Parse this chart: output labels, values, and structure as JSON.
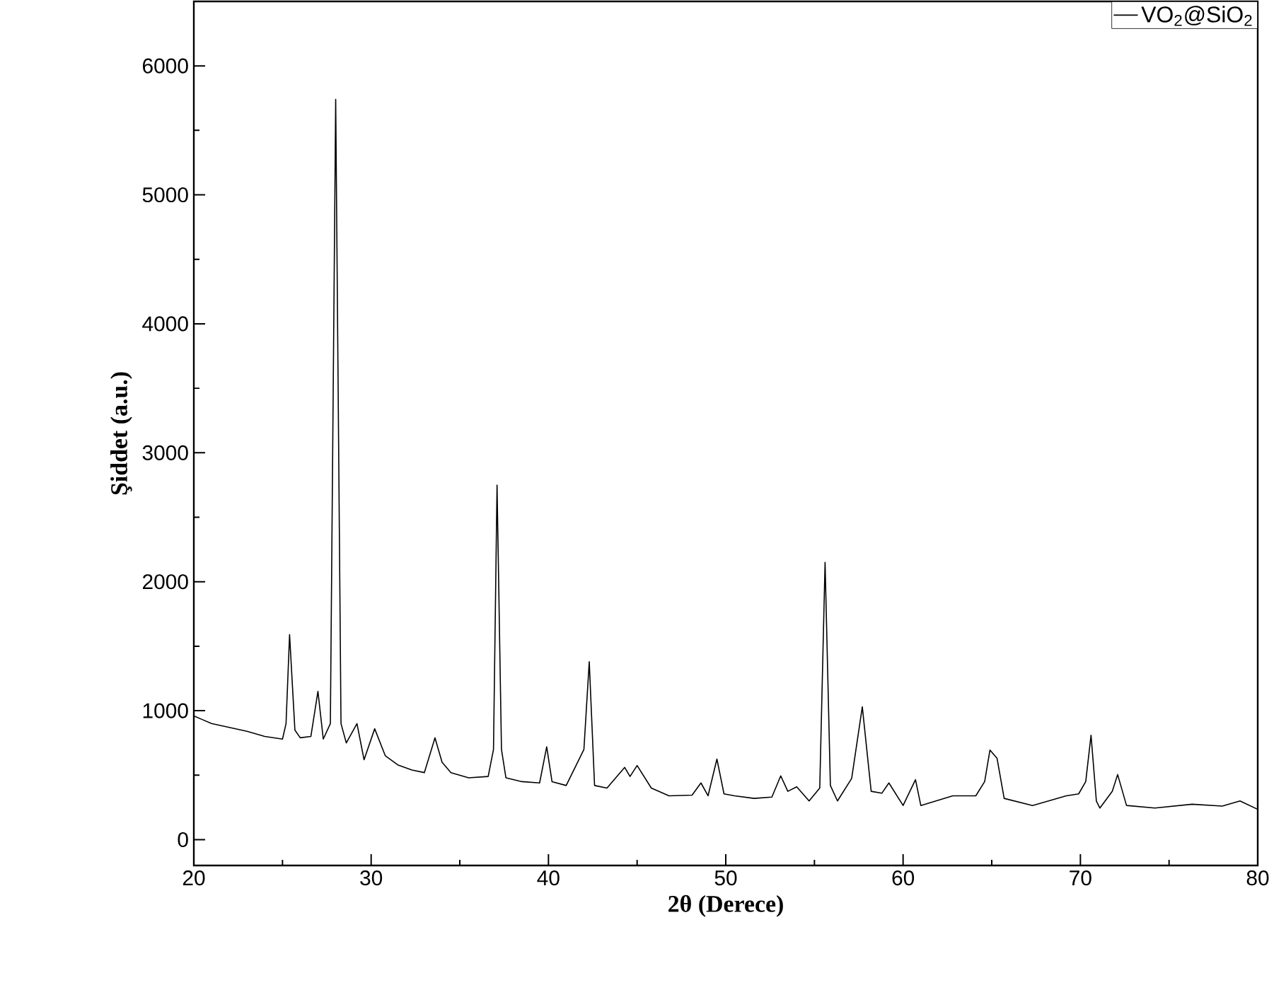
{
  "chart_data": {
    "type": "line",
    "xlabel": "2θ (Derece)",
    "ylabel": "Şiddet (a.u.)",
    "xlim": [
      20,
      80
    ],
    "ylim": [
      -200,
      6500
    ],
    "xticks": [
      20,
      30,
      40,
      50,
      60,
      70,
      80
    ],
    "yticks": [
      0,
      1000,
      2000,
      3000,
      4000,
      5000,
      6000
    ],
    "legend": "top right",
    "series": [
      {
        "name": "VO$_{2}$@SiO$_{2}$",
        "color": "#000000",
        "x": [
          20,
          20.5,
          21,
          22,
          23,
          24,
          25,
          25.2,
          25.4,
          25.7,
          26,
          26.6,
          27.0,
          27.3,
          27.7,
          28.0,
          28.3,
          28.6,
          29.2,
          29.6,
          30.2,
          30.8,
          31.5,
          32.3,
          33.0,
          33.6,
          34.0,
          34.5,
          35.5,
          36.6,
          36.9,
          37.1,
          37.35,
          37.6,
          38.5,
          39.5,
          39.9,
          40.2,
          41.0,
          42.0,
          42.3,
          42.6,
          43.3,
          44.3,
          44.6,
          45.0,
          45.8,
          46.8,
          48.1,
          48.6,
          49.0,
          49.5,
          49.9,
          50.5,
          51.6,
          52.6,
          53.1,
          53.5,
          54.0,
          54.7,
          55.3,
          55.6,
          55.9,
          56.3,
          57.1,
          57.7,
          58.2,
          58.8,
          59.2,
          60.0,
          60.7,
          61.0,
          62.8,
          64.1,
          64.6,
          64.9,
          65.3,
          65.7,
          67.3,
          69.2,
          69.9,
          70.3,
          70.6,
          70.9,
          71.1,
          71.8,
          72.1,
          72.6,
          74.2,
          76.3,
          78.0,
          79.0,
          80
        ],
        "values": [
          960,
          930,
          900,
          870,
          840,
          800,
          780,
          900,
          1590,
          850,
          790,
          800,
          1150,
          780,
          900,
          5740,
          900,
          750,
          900,
          620,
          860,
          650,
          580,
          540,
          520,
          790,
          600,
          520,
          480,
          490,
          700,
          2750,
          700,
          480,
          450,
          440,
          720,
          450,
          420,
          700,
          1380,
          420,
          400,
          560,
          490,
          575,
          400,
          340,
          345,
          440,
          340,
          625,
          355,
          340,
          320,
          330,
          495,
          375,
          410,
          300,
          400,
          2150,
          420,
          300,
          475,
          1030,
          375,
          360,
          440,
          265,
          465,
          265,
          340,
          340,
          450,
          695,
          630,
          320,
          265,
          340,
          355,
          450,
          810,
          300,
          245,
          375,
          505,
          265,
          245,
          275,
          260,
          300,
          235
        ]
      }
    ]
  }
}
